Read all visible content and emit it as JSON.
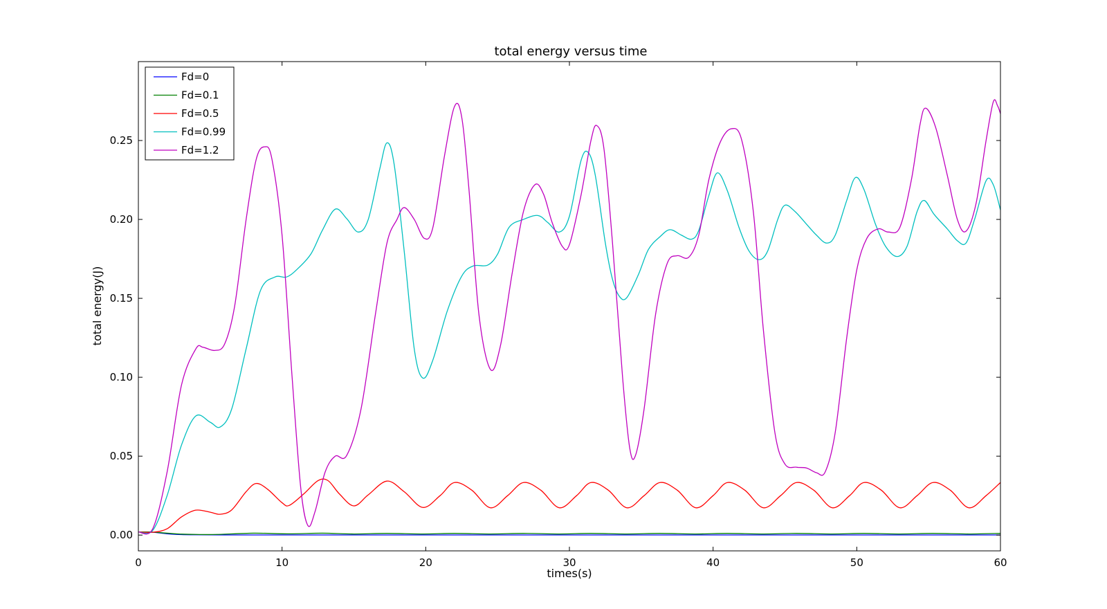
{
  "chart_data": {
    "type": "line",
    "title": "total energy versus time",
    "xlabel": "times(s)",
    "ylabel": "total energy(J)",
    "xlim": [
      0,
      60
    ],
    "ylim": [
      -0.01,
      0.3
    ],
    "xticks": [
      0,
      10,
      20,
      30,
      40,
      50,
      60
    ],
    "yticks": [
      0.0,
      0.05,
      0.1,
      0.15,
      0.2,
      0.25
    ],
    "xtick_labels": [
      "0",
      "10",
      "20",
      "30",
      "40",
      "50",
      "60"
    ],
    "ytick_labels": [
      "0.00",
      "0.05",
      "0.10",
      "0.15",
      "0.20",
      "0.25"
    ],
    "grid": false,
    "legend_position": "upper-left",
    "series": [
      {
        "name": "Fd=0",
        "color": "#0000ff",
        "points": [
          [
            0,
            0.002
          ],
          [
            1,
            0.0018
          ],
          [
            2,
            0.0008
          ],
          [
            3,
            0.0003
          ],
          [
            4,
            0.0002
          ],
          [
            6,
            0.0001
          ],
          [
            10,
            0.0001
          ],
          [
            20,
            0.0001
          ],
          [
            30,
            0.0001
          ],
          [
            40,
            0.0001
          ],
          [
            50,
            0.0001
          ],
          [
            60,
            0.0001
          ]
        ]
      },
      {
        "name": "Fd=0.1",
        "color": "#008000",
        "points": [
          [
            0,
            0.002
          ],
          [
            1,
            0.0019
          ],
          [
            2,
            0.0012
          ],
          [
            3,
            0.0006
          ],
          [
            4,
            0.0004
          ],
          [
            5.5,
            0.0004
          ],
          [
            8,
            0.0012
          ],
          [
            10.5,
            0.0008
          ],
          [
            12.8,
            0.0012
          ],
          [
            15,
            0.0007
          ],
          [
            17.3,
            0.0011
          ],
          [
            19.8,
            0.0007
          ],
          [
            22,
            0.0011
          ],
          [
            24.5,
            0.0007
          ],
          [
            26.8,
            0.0011
          ],
          [
            29.3,
            0.0007
          ],
          [
            31.5,
            0.0011
          ],
          [
            34,
            0.0007
          ],
          [
            36.3,
            0.0011
          ],
          [
            38.8,
            0.0007
          ],
          [
            41,
            0.0011
          ],
          [
            43.5,
            0.0007
          ],
          [
            45.8,
            0.0011
          ],
          [
            48.3,
            0.0007
          ],
          [
            50.5,
            0.0011
          ],
          [
            53,
            0.0007
          ],
          [
            55.3,
            0.0011
          ],
          [
            57.8,
            0.0007
          ],
          [
            60,
            0.0011
          ]
        ]
      },
      {
        "name": "Fd=0.5",
        "color": "#ff0000",
        "points": [
          [
            0,
            0.002
          ],
          [
            1,
            0.0018
          ],
          [
            2,
            0.004
          ],
          [
            3,
            0.0115
          ],
          [
            4,
            0.0158
          ],
          [
            5,
            0.0145
          ],
          [
            5.7,
            0.0132
          ],
          [
            6.5,
            0.016
          ],
          [
            7.5,
            0.0275
          ],
          [
            8.2,
            0.0327
          ],
          [
            9,
            0.029
          ],
          [
            10,
            0.0205
          ],
          [
            10.5,
            0.0188
          ],
          [
            11.5,
            0.026
          ],
          [
            12.5,
            0.0345
          ],
          [
            13.2,
            0.0345
          ],
          [
            14,
            0.026
          ],
          [
            15,
            0.0185
          ],
          [
            16,
            0.0255
          ],
          [
            17.3,
            0.0342
          ],
          [
            18.5,
            0.0275
          ],
          [
            19.8,
            0.0175
          ],
          [
            21,
            0.025
          ],
          [
            22,
            0.0333
          ],
          [
            23.2,
            0.0285
          ],
          [
            24.5,
            0.0173
          ],
          [
            25.7,
            0.025
          ],
          [
            26.8,
            0.0333
          ],
          [
            28,
            0.0285
          ],
          [
            29.3,
            0.0173
          ],
          [
            30.5,
            0.025
          ],
          [
            31.5,
            0.0333
          ],
          [
            32.7,
            0.0285
          ],
          [
            34,
            0.0173
          ],
          [
            35.2,
            0.025
          ],
          [
            36.3,
            0.0333
          ],
          [
            37.5,
            0.0285
          ],
          [
            38.8,
            0.0173
          ],
          [
            40,
            0.025
          ],
          [
            41,
            0.0333
          ],
          [
            42.2,
            0.0285
          ],
          [
            43.5,
            0.0173
          ],
          [
            44.7,
            0.025
          ],
          [
            45.8,
            0.0333
          ],
          [
            47,
            0.0285
          ],
          [
            48.3,
            0.0173
          ],
          [
            49.5,
            0.025
          ],
          [
            50.5,
            0.0333
          ],
          [
            51.7,
            0.0285
          ],
          [
            53,
            0.0173
          ],
          [
            54.2,
            0.025
          ],
          [
            55.3,
            0.0333
          ],
          [
            56.5,
            0.0285
          ],
          [
            57.8,
            0.0173
          ],
          [
            59,
            0.025
          ],
          [
            60,
            0.0333
          ]
        ]
      },
      {
        "name": "Fd=0.99",
        "color": "#00bfbf",
        "points": [
          [
            0,
            0.002
          ],
          [
            1,
            0.003
          ],
          [
            2,
            0.025
          ],
          [
            3,
            0.057
          ],
          [
            4,
            0.0755
          ],
          [
            5,
            0.0715
          ],
          [
            5.7,
            0.0685
          ],
          [
            6.5,
            0.08
          ],
          [
            7.5,
            0.118
          ],
          [
            8.5,
            0.155
          ],
          [
            9.5,
            0.1635
          ],
          [
            10.3,
            0.1635
          ],
          [
            11,
            0.168
          ],
          [
            12,
            0.178
          ],
          [
            12.8,
            0.193
          ],
          [
            13.7,
            0.2065
          ],
          [
            14.5,
            0.2005
          ],
          [
            15.3,
            0.192
          ],
          [
            16,
            0.2
          ],
          [
            16.8,
            0.232
          ],
          [
            17.3,
            0.2485
          ],
          [
            17.8,
            0.235
          ],
          [
            18.5,
            0.18
          ],
          [
            19.2,
            0.118
          ],
          [
            19.8,
            0.0995
          ],
          [
            20.5,
            0.111
          ],
          [
            21.5,
            0.142
          ],
          [
            22.5,
            0.164
          ],
          [
            23.3,
            0.1705
          ],
          [
            24.3,
            0.171
          ],
          [
            25,
            0.178
          ],
          [
            25.8,
            0.195
          ],
          [
            26.8,
            0.2
          ],
          [
            27.8,
            0.2025
          ],
          [
            28.5,
            0.198
          ],
          [
            29.3,
            0.192
          ],
          [
            30,
            0.202
          ],
          [
            30.8,
            0.237
          ],
          [
            31.3,
            0.2425
          ],
          [
            31.8,
            0.228
          ],
          [
            32.5,
            0.185
          ],
          [
            33,
            0.162
          ],
          [
            33.5,
            0.151
          ],
          [
            34,
            0.1505
          ],
          [
            34.8,
            0.165
          ],
          [
            35.5,
            0.181
          ],
          [
            36.3,
            0.189
          ],
          [
            37,
            0.1935
          ],
          [
            37.8,
            0.19
          ],
          [
            38.5,
            0.1875
          ],
          [
            39,
            0.193
          ],
          [
            39.7,
            0.215
          ],
          [
            40.3,
            0.2295
          ],
          [
            41,
            0.218
          ],
          [
            41.8,
            0.195
          ],
          [
            42.5,
            0.18
          ],
          [
            43.2,
            0.1745
          ],
          [
            43.8,
            0.18
          ],
          [
            44.5,
            0.2
          ],
          [
            45,
            0.209
          ],
          [
            45.7,
            0.205
          ],
          [
            46.5,
            0.197
          ],
          [
            47.2,
            0.19
          ],
          [
            47.9,
            0.185
          ],
          [
            48.5,
            0.19
          ],
          [
            49.3,
            0.212
          ],
          [
            49.9,
            0.2265
          ],
          [
            50.5,
            0.219
          ],
          [
            51.3,
            0.197
          ],
          [
            52,
            0.183
          ],
          [
            52.8,
            0.1765
          ],
          [
            53.5,
            0.183
          ],
          [
            54.2,
            0.205
          ],
          [
            54.7,
            0.212
          ],
          [
            55.4,
            0.203
          ],
          [
            56.3,
            0.194
          ],
          [
            57,
            0.1865
          ],
          [
            57.6,
            0.185
          ],
          [
            58.2,
            0.2
          ],
          [
            59,
            0.2245
          ],
          [
            59.5,
            0.222
          ],
          [
            60,
            0.206
          ]
        ]
      },
      {
        "name": "Fd=1.2",
        "color": "#bf00bf",
        "points": [
          [
            0,
            0.002
          ],
          [
            1,
            0.004
          ],
          [
            2,
            0.04
          ],
          [
            3,
            0.095
          ],
          [
            4,
            0.118
          ],
          [
            4.5,
            0.119
          ],
          [
            5.3,
            0.117
          ],
          [
            6,
            0.121
          ],
          [
            6.7,
            0.145
          ],
          [
            7.5,
            0.2
          ],
          [
            8.2,
            0.238
          ],
          [
            8.8,
            0.246
          ],
          [
            9.3,
            0.238
          ],
          [
            10,
            0.19
          ],
          [
            10.7,
            0.1
          ],
          [
            11.3,
            0.03
          ],
          [
            11.8,
            0.006
          ],
          [
            12.3,
            0.015
          ],
          [
            13,
            0.04
          ],
          [
            13.7,
            0.05
          ],
          [
            14.5,
            0.0505
          ],
          [
            15.5,
            0.08
          ],
          [
            16.5,
            0.14
          ],
          [
            17.3,
            0.185
          ],
          [
            18,
            0.2
          ],
          [
            18.5,
            0.2075
          ],
          [
            19.2,
            0.2
          ],
          [
            19.9,
            0.188
          ],
          [
            20.5,
            0.195
          ],
          [
            21.3,
            0.24
          ],
          [
            22,
            0.2715
          ],
          [
            22.5,
            0.265
          ],
          [
            23,
            0.22
          ],
          [
            23.7,
            0.14
          ],
          [
            24.5,
            0.105
          ],
          [
            25.2,
            0.12
          ],
          [
            26,
            0.165
          ],
          [
            26.8,
            0.205
          ],
          [
            27.6,
            0.222
          ],
          [
            28.2,
            0.216
          ],
          [
            28.8,
            0.198
          ],
          [
            29.5,
            0.183
          ],
          [
            30,
            0.184
          ],
          [
            30.8,
            0.215
          ],
          [
            31.5,
            0.25
          ],
          [
            31.9,
            0.2595
          ],
          [
            32.4,
            0.245
          ],
          [
            33,
            0.185
          ],
          [
            33.7,
            0.1
          ],
          [
            34.2,
            0.055
          ],
          [
            34.6,
            0.0505
          ],
          [
            35.2,
            0.08
          ],
          [
            36,
            0.14
          ],
          [
            36.8,
            0.172
          ],
          [
            37.5,
            0.177
          ],
          [
            38.3,
            0.176
          ],
          [
            39,
            0.19
          ],
          [
            39.7,
            0.225
          ],
          [
            40.5,
            0.249
          ],
          [
            41.3,
            0.2575
          ],
          [
            42,
            0.25
          ],
          [
            42.8,
            0.205
          ],
          [
            43.5,
            0.13
          ],
          [
            44.3,
            0.065
          ],
          [
            45,
            0.045
          ],
          [
            45.8,
            0.043
          ],
          [
            46.5,
            0.0425
          ],
          [
            47.2,
            0.0395
          ],
          [
            47.8,
            0.04
          ],
          [
            48.5,
            0.065
          ],
          [
            49.3,
            0.125
          ],
          [
            50,
            0.168
          ],
          [
            50.7,
            0.188
          ],
          [
            51.5,
            0.194
          ],
          [
            52.2,
            0.192
          ],
          [
            53,
            0.195
          ],
          [
            53.8,
            0.225
          ],
          [
            54.4,
            0.26
          ],
          [
            54.8,
            0.2705
          ],
          [
            55.5,
            0.258
          ],
          [
            56.3,
            0.228
          ],
          [
            57,
            0.2
          ],
          [
            57.6,
            0.1925
          ],
          [
            58.3,
            0.21
          ],
          [
            59,
            0.25
          ],
          [
            59.5,
            0.2745
          ],
          [
            59.8,
            0.272
          ],
          [
            60,
            0.267
          ]
        ]
      }
    ]
  }
}
